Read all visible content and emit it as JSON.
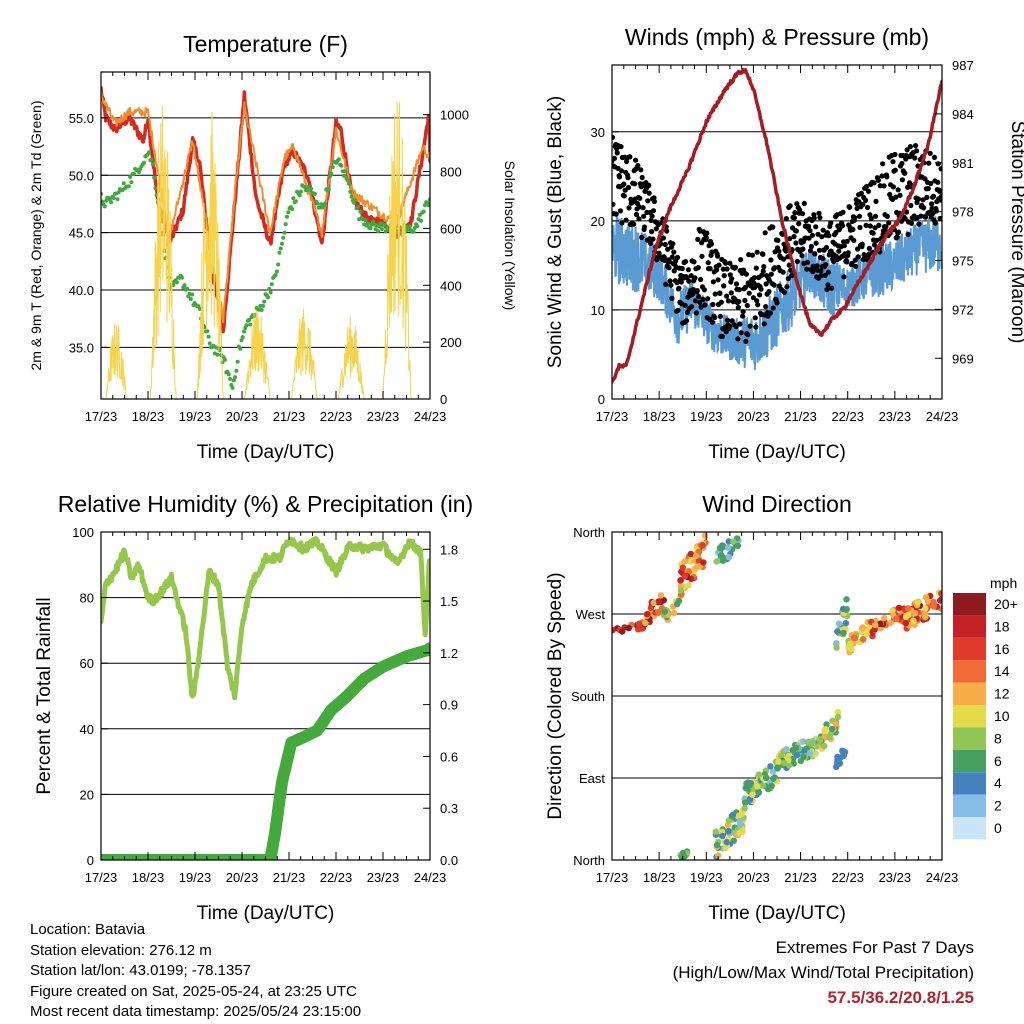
{
  "colors": {
    "temp2m": "#d42a1e",
    "temp9m": "#f08c2a",
    "dewpoint": "#3eaa3e",
    "solar": "#f7d34a",
    "gust": "#000000",
    "wind": "#5a9bd4",
    "pressure": "#a31d22",
    "rh": "#95c84a",
    "precip": "#44aa3c",
    "extremes": "#b7222b"
  },
  "chart_data": [
    {
      "type": "line",
      "title": "Temperature (F)",
      "xlabel": "Time (Day/UTC)",
      "ylabel": "2m & 9m T (Red, Orange) & 2m Td (Green)",
      "ylabel_right": "Solar Insolation (Yellow)",
      "x_ticks": [
        "17/23",
        "18/23",
        "19/23",
        "20/23",
        "21/23",
        "22/23",
        "23/23",
        "24/23"
      ],
      "ylim": [
        30.5,
        59.0
      ],
      "y_ticks": [
        "35.0",
        "40.0",
        "45.0",
        "50.0",
        "55.0"
      ],
      "y_tick_values": [
        35,
        40,
        45,
        50,
        55
      ],
      "ylim_right": [
        0,
        1150
      ],
      "y_ticks_right": [
        "0",
        "200",
        "400",
        "600",
        "800",
        "1000"
      ],
      "y_tick_values_right": [
        0,
        200,
        400,
        600,
        800,
        1000
      ],
      "series": [
        {
          "key": "temp2m",
          "kind": "line",
          "width": 3.5,
          "x": [
            0,
            0.1,
            0.3,
            0.6,
            0.9,
            1.0,
            1.2,
            1.45,
            1.75,
            1.95,
            2.1,
            2.35,
            2.6,
            2.9,
            3.05,
            3.3,
            3.6,
            3.9,
            4.1,
            4.4,
            4.7,
            5.0,
            5.1,
            5.35,
            5.7,
            6.0,
            6.3,
            6.6,
            6.85,
            6.98,
            7.0
          ],
          "y": [
            57.5,
            55.0,
            54.0,
            55.0,
            53.0,
            55.0,
            48.0,
            44.0,
            47.0,
            53.0,
            51.0,
            42.0,
            36.5,
            50.0,
            57.0,
            48.0,
            44.0,
            51.0,
            52.0,
            50.0,
            44.0,
            54.5,
            54.0,
            48.0,
            46.0,
            46.0,
            45.0,
            46.0,
            52.0,
            55.5,
            51.0
          ]
        },
        {
          "key": "temp9m",
          "kind": "line",
          "width": 2,
          "x": [
            0,
            0.3,
            0.6,
            1.0,
            1.45,
            1.95,
            2.35,
            2.6,
            2.9,
            3.05,
            3.6,
            3.9,
            4.1,
            4.7,
            5.0,
            5.35,
            6.0,
            6.3,
            6.85,
            7.0
          ],
          "y": [
            57.0,
            54.5,
            55.5,
            55.5,
            44.5,
            53.0,
            43.0,
            37.5,
            50.5,
            56.0,
            45.0,
            51.5,
            52.5,
            45.0,
            54.0,
            48.5,
            46.5,
            46.0,
            52.5,
            51.5
          ]
        },
        {
          "key": "dewpoint",
          "kind": "dots",
          "width": 3,
          "x": [
            0,
            0.1,
            0.4,
            0.7,
            1.0,
            1.1,
            1.3,
            1.5,
            1.7,
            1.9,
            2.1,
            2.3,
            2.6,
            2.8,
            2.95,
            3.1,
            3.4,
            3.7,
            4.0,
            4.3,
            4.5,
            4.7,
            5.0,
            5.2,
            5.5,
            5.8,
            6.1,
            6.4,
            6.7,
            7.0
          ],
          "y": [
            48.0,
            47.5,
            48.5,
            50.0,
            52.0,
            51.0,
            45.0,
            40.0,
            41.0,
            39.5,
            38.0,
            35.5,
            34.0,
            31.5,
            35.0,
            37.0,
            38.5,
            41.0,
            47.0,
            49.0,
            48.5,
            47.0,
            51.5,
            50.0,
            46.5,
            45.5,
            45.5,
            45.0,
            45.5,
            48.0
          ]
        },
        {
          "key": "solar",
          "kind": "spiky",
          "width": 1,
          "spikes": [
            {
              "x0": 0.1,
              "x1": 0.55,
              "peak": 280
            },
            {
              "x0": 1.05,
              "x1": 1.6,
              "peak": 1080
            },
            {
              "x0": 2.05,
              "x1": 2.6,
              "peak": 1050
            },
            {
              "x0": 3.05,
              "x1": 3.6,
              "peak": 330
            },
            {
              "x0": 4.05,
              "x1": 4.6,
              "peak": 330
            },
            {
              "x0": 5.05,
              "x1": 5.6,
              "peak": 300
            },
            {
              "x0": 6.0,
              "x1": 6.6,
              "peak": 1130
            }
          ]
        }
      ]
    },
    {
      "type": "line",
      "title": "Winds (mph) & Pressure (mb)",
      "xlabel": "Time (Day/UTC)",
      "ylabel": "Sonic Wind & Gust (Blue, Black)",
      "ylabel_right": "Station Pressure (Maroon)",
      "x_ticks": [
        "17/23",
        "18/23",
        "19/23",
        "20/23",
        "21/23",
        "22/23",
        "23/23",
        "24/23"
      ],
      "ylim": [
        0,
        37.5
      ],
      "y_ticks": [
        "0",
        "10",
        "20",
        "30"
      ],
      "y_tick_values": [
        0,
        10,
        20,
        30
      ],
      "ylim_right": [
        966.5,
        987.0
      ],
      "y_ticks_right": [
        "969",
        "972",
        "975",
        "978",
        "981",
        "984",
        "987"
      ],
      "y_tick_values_right": [
        969,
        972,
        975,
        978,
        981,
        984,
        987
      ],
      "series": [
        {
          "key": "wind",
          "kind": "band",
          "width": 2,
          "x": [
            0,
            0.5,
            1.0,
            1.4,
            1.7,
            2.2,
            2.6,
            3.0,
            3.4,
            3.8,
            4.2,
            4.6,
            5.0,
            5.4,
            6.0,
            6.5,
            7.0
          ],
          "lo": [
            13,
            12,
            11,
            6,
            8,
            5,
            4,
            3,
            5,
            8,
            12,
            9,
            10,
            11,
            12,
            14,
            14
          ],
          "hi": [
            21,
            20,
            17,
            12,
            14,
            10,
            9,
            10,
            12,
            15,
            17,
            16,
            15,
            17,
            18,
            20,
            21
          ]
        },
        {
          "key": "gust",
          "kind": "band",
          "width": 5,
          "x": [
            0,
            0.4,
            0.8,
            1.2,
            1.5,
            1.9,
            2.3,
            2.6,
            3.0,
            3.4,
            3.8,
            4.2,
            4.6,
            5.0,
            5.5,
            6.0,
            6.5,
            7.0
          ],
          "lo": [
            20,
            19,
            17,
            12,
            8,
            10,
            7,
            6,
            6,
            10,
            13,
            14,
            12,
            14,
            16,
            17,
            19,
            20
          ],
          "hi": [
            30,
            28,
            24,
            19,
            15,
            20,
            16,
            15,
            17,
            20,
            22,
            22,
            20,
            22,
            25,
            28,
            29,
            27
          ]
        },
        {
          "key": "pressure",
          "kind": "line",
          "width": 3.5,
          "x": [
            0,
            0.15,
            0.3,
            0.6,
            0.9,
            1.2,
            1.6,
            2.0,
            2.4,
            2.7,
            2.85,
            3.0,
            3.3,
            3.6,
            3.9,
            4.2,
            4.45,
            4.7,
            4.9,
            5.2,
            5.5,
            5.8,
            6.1,
            6.4,
            6.7,
            7.0
          ],
          "y": [
            967.5,
            968.5,
            968.5,
            972.0,
            975.5,
            978.0,
            980.5,
            983.5,
            985.5,
            986.6,
            986.6,
            985.5,
            982.0,
            977.5,
            974.0,
            971.0,
            970.5,
            971.5,
            972.0,
            973.5,
            975.0,
            976.5,
            977.5,
            979.5,
            982.0,
            986.0
          ]
        }
      ]
    },
    {
      "type": "line",
      "title": "Relative Humidity (%) & Precipitation (in)",
      "xlabel": "Time (Day/UTC)",
      "ylabel": "Percent & Total Rainfall",
      "x_ticks": [
        "17/23",
        "18/23",
        "19/23",
        "20/23",
        "21/23",
        "22/23",
        "23/23",
        "24/23"
      ],
      "ylim": [
        0,
        100
      ],
      "y_ticks": [
        "0",
        "20",
        "40",
        "60",
        "80",
        "100"
      ],
      "y_tick_values": [
        0,
        20,
        40,
        60,
        80,
        100
      ],
      "ylim_right": [
        0,
        1.9
      ],
      "y_ticks_right": [
        "0.0",
        "0.3",
        "0.6",
        "0.9",
        "1.2",
        "1.5",
        "1.8"
      ],
      "y_tick_values_right": [
        0.0,
        0.3,
        0.6,
        0.9,
        1.2,
        1.5,
        1.8
      ],
      "series": [
        {
          "key": "rh",
          "kind": "line",
          "width": 5,
          "x": [
            0,
            0.1,
            0.3,
            0.5,
            0.65,
            0.8,
            1.0,
            1.1,
            1.3,
            1.5,
            1.8,
            1.95,
            2.15,
            2.3,
            2.5,
            2.7,
            2.85,
            3.0,
            3.2,
            3.5,
            3.8,
            4.0,
            4.3,
            4.6,
            5.0,
            5.3,
            5.6,
            6.0,
            6.3,
            6.55,
            6.8,
            6.9,
            6.98
          ],
          "y": [
            72,
            84,
            88,
            94,
            86,
            90,
            80,
            79,
            82,
            86,
            70,
            48,
            70,
            88,
            84,
            58,
            50,
            72,
            84,
            92,
            92,
            98,
            95,
            97,
            88,
            96,
            95,
            96,
            90,
            97,
            94,
            68,
            90
          ]
        },
        {
          "key": "precip",
          "kind": "line",
          "width": 12,
          "x": [
            0,
            1.0,
            2.0,
            3.0,
            3.6,
            3.7,
            3.85,
            4.05,
            4.3,
            4.6,
            4.9,
            5.2,
            5.6,
            6.0,
            6.5,
            7.0
          ],
          "y": [
            0.0,
            0.0,
            0.0,
            0.0,
            0.0,
            0.15,
            0.45,
            0.68,
            0.71,
            0.75,
            0.87,
            0.94,
            1.05,
            1.12,
            1.18,
            1.22
          ]
        }
      ]
    },
    {
      "type": "scatter",
      "title": "Wind Direction",
      "xlabel": "Time (Day/UTC)",
      "ylabel": "Direction (Colored By Speed)",
      "x_ticks": [
        "17/23",
        "18/23",
        "19/23",
        "20/23",
        "21/23",
        "22/23",
        "23/23",
        "24/23"
      ],
      "ylim": [
        0,
        360
      ],
      "y_ticks": [
        "North",
        "East",
        "South",
        "West",
        "North"
      ],
      "y_tick_values": [
        0,
        90,
        180,
        270,
        360
      ],
      "series": [
        {
          "key": "direction",
          "kind": "colored-dots",
          "clusters": [
            {
              "x0": 0.0,
              "x1": 0.7,
              "y0": 247,
              "y1": 262,
              "speed": [
                14,
                20
              ]
            },
            {
              "x0": 0.7,
              "x1": 1.1,
              "y0": 255,
              "y1": 300,
              "speed": [
                10,
                20
              ]
            },
            {
              "x0": 1.1,
              "x1": 1.45,
              "y0": 258,
              "y1": 290,
              "speed": [
                5,
                12
              ]
            },
            {
              "x0": 1.45,
              "x1": 2.0,
              "y0": 290,
              "y1": 358,
              "speed": [
                8,
                20
              ]
            },
            {
              "x0": 2.2,
              "x1": 2.7,
              "y0": 320,
              "y1": 360,
              "speed": [
                2,
                8
              ]
            },
            {
              "x0": 1.45,
              "x1": 1.6,
              "y0": 0,
              "y1": 12,
              "speed": [
                5,
                9
              ]
            },
            {
              "x0": 2.2,
              "x1": 2.8,
              "y0": 0,
              "y1": 65,
              "speed": [
                2,
                12
              ]
            },
            {
              "x0": 2.8,
              "x1": 3.5,
              "y0": 55,
              "y1": 110,
              "speed": [
                2,
                10
              ]
            },
            {
              "x0": 3.5,
              "x1": 4.4,
              "y0": 95,
              "y1": 140,
              "speed": [
                2,
                10
              ]
            },
            {
              "x0": 4.4,
              "x1": 4.8,
              "y0": 118,
              "y1": 165,
              "speed": [
                5,
                13
              ]
            },
            {
              "x0": 4.75,
              "x1": 4.95,
              "y0": 100,
              "y1": 125,
              "speed": [
                3,
                5
              ]
            },
            {
              "x0": 4.75,
              "x1": 5.0,
              "y0": 225,
              "y1": 292,
              "speed": [
                2,
                10
              ]
            },
            {
              "x0": 5.0,
              "x1": 5.5,
              "y0": 225,
              "y1": 265,
              "speed": [
                8,
                14
              ]
            },
            {
              "x0": 5.5,
              "x1": 6.2,
              "y0": 245,
              "y1": 280,
              "speed": [
                10,
                20
              ]
            },
            {
              "x0": 6.2,
              "x1": 7.0,
              "y0": 250,
              "y1": 300,
              "speed": [
                10,
                20
              ]
            }
          ]
        }
      ],
      "colorbar": {
        "title": "mph",
        "labels": [
          "20+",
          "18",
          "16",
          "14",
          "12",
          "10",
          "8",
          "6",
          "4",
          "2",
          "0"
        ],
        "colors": [
          "#8e1b1d",
          "#c32126",
          "#e03b2a",
          "#f26a34",
          "#f9ac48",
          "#e4db4b",
          "#8fc752",
          "#47a060",
          "#4682bf",
          "#84bde8",
          "#c8e6f8"
        ]
      }
    }
  ],
  "footer": {
    "location": "Location: Batavia",
    "elevation": "Station elevation: 276.12 m",
    "latlon": "Station lat/lon: 43.0199; -78.1357",
    "created": "Figure created on Sat, 2025-05-24, at 23:25 UTC",
    "recent": "Most recent data timestamp: 2025/05/24 23:15:00",
    "extremes_title": "Extremes For Past 7 Days",
    "extremes_sub": "(High/Low/Max Wind/Total Precipitation)",
    "extremes_values": "57.5/36.2/20.8/1.25"
  }
}
